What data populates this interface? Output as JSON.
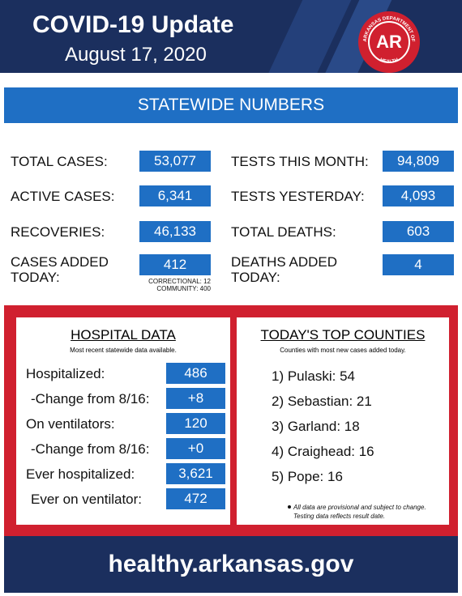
{
  "header": {
    "title": "COVID-19 Update",
    "date": "August 17, 2020",
    "logo": {
      "initials": "AR",
      "ring_top": "ARKANSAS DEPARTMENT OF",
      "ring_bottom": "HEALTH"
    }
  },
  "statewide": {
    "title": "STATEWIDE NUMBERS",
    "left": [
      {
        "label": "TOTAL CASES:",
        "value": "53,077"
      },
      {
        "label": "ACTIVE CASES:",
        "value": "6,341"
      },
      {
        "label": "RECOVERIES:",
        "value": "46,133"
      },
      {
        "label": "CASES ADDED TODAY:",
        "value": "412",
        "notes": [
          "CORRECTIONAL: 12",
          "COMMUNITY: 400"
        ]
      }
    ],
    "right": [
      {
        "label": "TESTS THIS MONTH:",
        "value": "94,809"
      },
      {
        "label": "TESTS YESTERDAY:",
        "value": "4,093"
      },
      {
        "label": "TOTAL DEATHS:",
        "value": "603"
      },
      {
        "label": "DEATHS ADDED TODAY:",
        "value": "4"
      }
    ]
  },
  "hospital": {
    "title": "HOSPITAL DATA",
    "subtitle": "Most recent statewide data available.",
    "rows": [
      {
        "label": "Hospitalized:",
        "value": "486"
      },
      {
        "label": "-Change from 8/16:",
        "value": "+8"
      },
      {
        "label": "On ventilators:",
        "value": "120"
      },
      {
        "label": "-Change from 8/16:",
        "value": "+0"
      },
      {
        "label": "Ever hospitalized:",
        "value": "3,621"
      },
      {
        "label": "Ever on ventilator:",
        "value": "472"
      }
    ]
  },
  "counties": {
    "title": "TODAY'S TOP COUNTIES",
    "subtitle": "Counties with most new cases added today.",
    "items": [
      "1) Pulaski: 54",
      "2) Sebastian: 21",
      "3) Garland: 18",
      "4) Craighead: 16",
      "5) Pope: 16"
    ],
    "footnote": [
      "All data are provisional and subject to change.",
      "Testing data reflects result date."
    ]
  },
  "footer": {
    "url": "healthy.arkansas.gov"
  }
}
